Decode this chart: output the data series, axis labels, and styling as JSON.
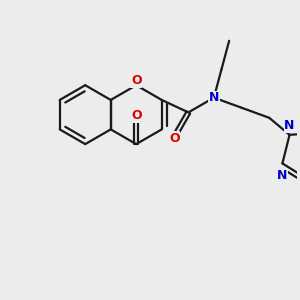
{
  "background_color": "#ececec",
  "bond_color": "#1a1a1a",
  "oxygen_color": "#dd0000",
  "nitrogen_color": "#0000cc",
  "line_width": 1.6,
  "figsize": [
    3.0,
    3.0
  ],
  "dpi": 100,
  "xlim": [
    0,
    10
  ],
  "ylim": [
    0,
    10
  ]
}
